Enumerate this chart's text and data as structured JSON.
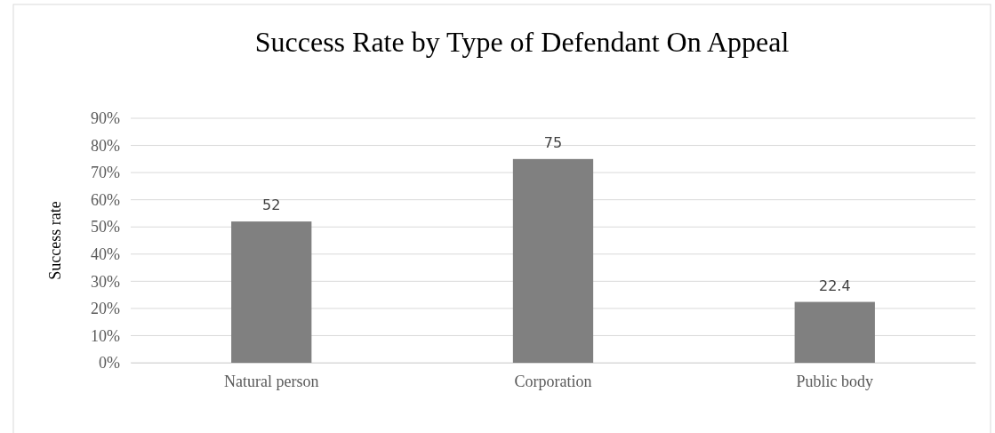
{
  "chart_data": {
    "type": "bar",
    "title": "Success Rate by Type of Defendant On Appeal",
    "ylabel": "Success rate",
    "categories": [
      "Natural person",
      "Corporation",
      "Public body"
    ],
    "values": [
      52,
      75,
      22.4
    ],
    "color": "#808080",
    "data_labels": true,
    "grid": "y",
    "ylim": [
      0,
      90
    ],
    "yticks": [
      {
        "value": 0,
        "label": "0%"
      },
      {
        "value": 10,
        "label": "10%"
      },
      {
        "value": 20,
        "label": "20%"
      },
      {
        "value": 30,
        "label": "30%"
      },
      {
        "value": 40,
        "label": "40%"
      },
      {
        "value": 50,
        "label": "50%"
      },
      {
        "value": 60,
        "label": "60%"
      },
      {
        "value": 70,
        "label": "70%"
      },
      {
        "value": 80,
        "label": "80%"
      },
      {
        "value": 90,
        "label": "90%"
      }
    ]
  }
}
